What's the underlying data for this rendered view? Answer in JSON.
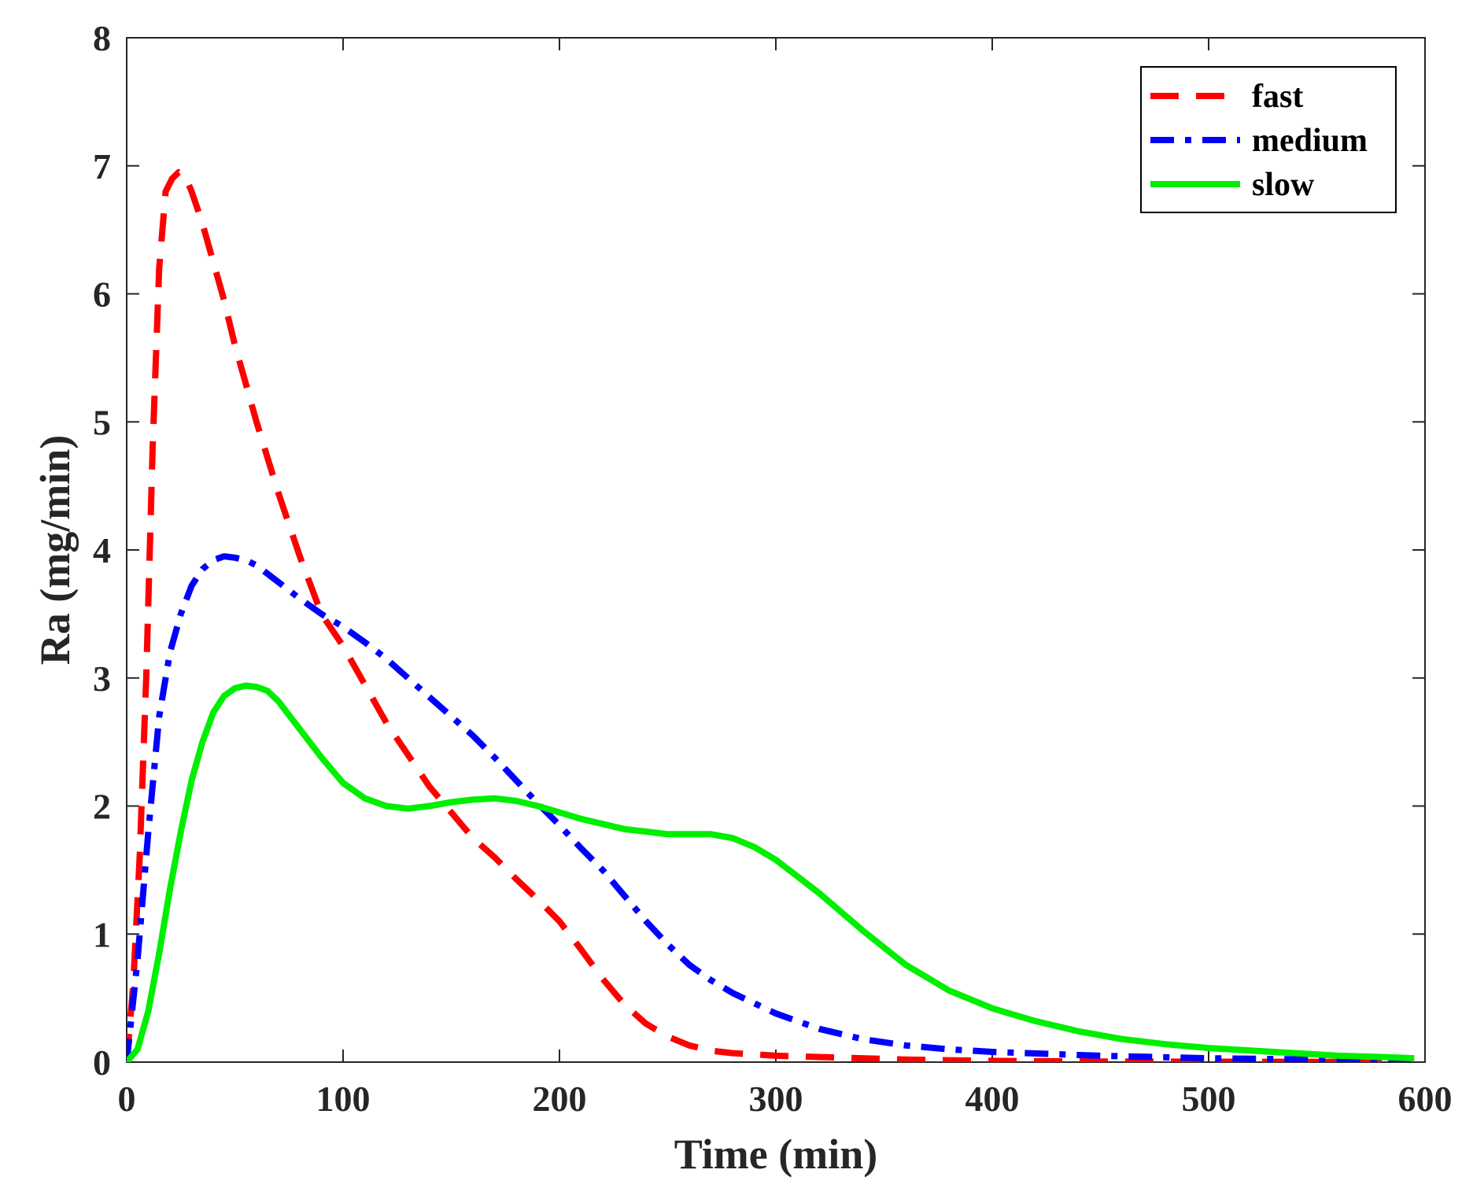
{
  "chart_data": {
    "type": "line",
    "title": "",
    "xlabel": "Time (min)",
    "ylabel": "Ra (mg/min)",
    "xlim": [
      0,
      600
    ],
    "ylim": [
      0,
      8
    ],
    "xticks": [
      "0",
      "100",
      "200",
      "300",
      "400",
      "500",
      "600"
    ],
    "yticks": [
      "0",
      "1",
      "2",
      "3",
      "4",
      "5",
      "6",
      "7",
      "8"
    ],
    "grid": false,
    "legend_position": "top-right",
    "series": [
      {
        "name": "fast",
        "color": "#ff0000",
        "style": "dashed",
        "x": [
          0,
          3,
          6,
          9,
          12,
          15,
          18,
          21,
          24,
          27,
          30,
          35,
          40,
          45,
          50,
          55,
          60,
          70,
          80,
          90,
          100,
          110,
          120,
          130,
          140,
          150,
          160,
          170,
          180,
          190,
          200,
          210,
          220,
          230,
          240,
          250,
          260,
          270,
          280,
          290,
          300,
          320,
          340,
          360,
          380,
          400,
          450,
          500,
          550,
          595
        ],
        "y": [
          0,
          0.6,
          1.6,
          3.0,
          4.8,
          6.2,
          6.8,
          6.9,
          6.95,
          6.92,
          6.8,
          6.55,
          6.25,
          5.95,
          5.6,
          5.3,
          5.0,
          4.45,
          3.95,
          3.5,
          3.25,
          2.95,
          2.65,
          2.4,
          2.15,
          1.95,
          1.75,
          1.6,
          1.43,
          1.27,
          1.1,
          0.88,
          0.65,
          0.45,
          0.3,
          0.2,
          0.13,
          0.09,
          0.07,
          0.06,
          0.05,
          0.04,
          0.03,
          0.02,
          0.015,
          0.01,
          0.005,
          0.003,
          0.002,
          0.001
        ]
      },
      {
        "name": "medium",
        "color": "#0000ff",
        "style": "dashdot",
        "x": [
          0,
          5,
          10,
          15,
          20,
          25,
          30,
          35,
          40,
          45,
          50,
          55,
          60,
          70,
          80,
          90,
          100,
          110,
          120,
          130,
          140,
          150,
          160,
          170,
          180,
          190,
          200,
          210,
          220,
          230,
          240,
          250,
          260,
          270,
          280,
          290,
          300,
          320,
          340,
          360,
          380,
          400,
          450,
          500,
          550,
          595
        ],
        "y": [
          0,
          0.8,
          1.8,
          2.7,
          3.2,
          3.5,
          3.72,
          3.85,
          3.92,
          3.95,
          3.94,
          3.92,
          3.88,
          3.75,
          3.62,
          3.5,
          3.4,
          3.28,
          3.15,
          3.0,
          2.85,
          2.7,
          2.55,
          2.38,
          2.2,
          2.02,
          1.85,
          1.67,
          1.5,
          1.3,
          1.1,
          0.92,
          0.76,
          0.64,
          0.54,
          0.46,
          0.38,
          0.26,
          0.18,
          0.13,
          0.1,
          0.08,
          0.05,
          0.03,
          0.02,
          0.01
        ]
      },
      {
        "name": "slow",
        "color": "#00ee00",
        "style": "solid",
        "x": [
          0,
          5,
          10,
          15,
          20,
          25,
          30,
          35,
          40,
          45,
          50,
          55,
          60,
          65,
          70,
          80,
          90,
          100,
          110,
          120,
          130,
          140,
          150,
          160,
          170,
          180,
          190,
          200,
          210,
          220,
          230,
          240,
          250,
          260,
          270,
          280,
          290,
          300,
          310,
          320,
          340,
          360,
          380,
          400,
          420,
          440,
          460,
          480,
          500,
          520,
          540,
          560,
          580,
          595
        ],
        "y": [
          0,
          0.1,
          0.4,
          0.85,
          1.35,
          1.8,
          2.2,
          2.5,
          2.73,
          2.86,
          2.92,
          2.94,
          2.93,
          2.9,
          2.82,
          2.6,
          2.38,
          2.18,
          2.06,
          2.0,
          1.98,
          2.0,
          2.03,
          2.05,
          2.06,
          2.04,
          2.0,
          1.95,
          1.9,
          1.86,
          1.82,
          1.8,
          1.78,
          1.78,
          1.78,
          1.75,
          1.68,
          1.58,
          1.45,
          1.32,
          1.03,
          0.76,
          0.56,
          0.42,
          0.32,
          0.24,
          0.18,
          0.14,
          0.11,
          0.09,
          0.07,
          0.05,
          0.04,
          0.03
        ]
      }
    ]
  }
}
